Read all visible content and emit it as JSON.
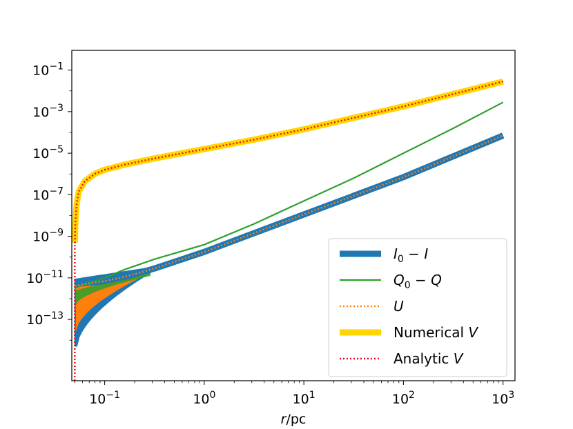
{
  "chart_data": {
    "type": "line",
    "xscale": "log",
    "yscale": "log",
    "xlabel": "r/pc",
    "ylabel": "",
    "xlim_log10": [
      -1.33,
      3.12
    ],
    "ylim_log10": [
      -15.95,
      -0.05
    ],
    "x_ticks": [
      {
        "log10": -1,
        "base": "10",
        "exp": "−1"
      },
      {
        "log10": 0,
        "base": "10",
        "exp": "0"
      },
      {
        "log10": 1,
        "base": "10",
        "exp": "1"
      },
      {
        "log10": 2,
        "base": "10",
        "exp": "2"
      },
      {
        "log10": 3,
        "base": "10",
        "exp": "3"
      }
    ],
    "y_ticks": [
      {
        "log10": -1,
        "base": "10",
        "exp": "−1"
      },
      {
        "log10": -3,
        "base": "10",
        "exp": "−3"
      },
      {
        "log10": -5,
        "base": "10",
        "exp": "−5"
      },
      {
        "log10": -7,
        "base": "10",
        "exp": "−7"
      },
      {
        "log10": -9,
        "base": "10",
        "exp": "−9"
      },
      {
        "log10": -11,
        "base": "10",
        "exp": "−11"
      },
      {
        "log10": -13,
        "base": "10",
        "exp": "−13"
      }
    ],
    "series": [
      {
        "name": "I0 − I",
        "color": "#1f77b4",
        "style": "thick-solid",
        "x_log10": [
          -1.3,
          -1.2,
          -1.0,
          -0.8,
          -0.5,
          0,
          0.5,
          1,
          1.5,
          2,
          2.5,
          3
        ],
        "y_log10": [
          -11.3,
          -11.25,
          -11.15,
          -10.95,
          -10.55,
          -9.75,
          -8.85,
          -7.95,
          -7.05,
          -6.15,
          -5.15,
          -4.15
        ]
      },
      {
        "name": "Q0 − Q",
        "color": "#2ca02c",
        "style": "thin-solid",
        "x_log10": [
          -1.3,
          -1.2,
          -1.0,
          -0.8,
          -0.5,
          0,
          0.5,
          1,
          1.5,
          2,
          2.5,
          3
        ],
        "y_log10": [
          -11.5,
          -11.3,
          -11.0,
          -10.6,
          -10.1,
          -9.4,
          -8.4,
          -7.3,
          -6.2,
          -5.0,
          -3.8,
          -2.55
        ]
      },
      {
        "name": "U",
        "color": "#ff7f0e",
        "style": "dotted",
        "x_log10": [
          -1.3,
          -1.2,
          -1.0,
          -0.8,
          -0.5,
          0,
          0.5,
          1,
          1.5,
          2,
          2.5,
          3
        ],
        "y_log10": [
          -11.4,
          -11.3,
          -11.15,
          -10.95,
          -10.55,
          -9.75,
          -8.85,
          -7.95,
          -7.05,
          -6.15,
          -5.15,
          -4.15
        ]
      },
      {
        "name": "Numerical V",
        "color": "#ffd700",
        "style": "thick-solid",
        "x_log10": [
          -1.299,
          -1.295,
          -1.29,
          -1.28,
          -1.26,
          -1.2,
          -1.1,
          -1.0,
          -0.8,
          -0.5,
          0,
          0.5,
          1,
          1.5,
          2,
          2.5,
          3
        ],
        "y_log10": [
          -9.3,
          -8.5,
          -8.0,
          -7.4,
          -6.85,
          -6.35,
          -6.0,
          -5.8,
          -5.55,
          -5.25,
          -4.8,
          -4.35,
          -3.85,
          -3.3,
          -2.75,
          -2.15,
          -1.55
        ]
      },
      {
        "name": "Analytic V",
        "color": "#ff0000",
        "style": "dotted",
        "x_log10": [
          -1.3,
          -1.3,
          -1.299,
          -1.295,
          -1.29,
          -1.28,
          -1.26,
          -1.2,
          -1.1,
          -1.0,
          -0.8,
          -0.5,
          0,
          0.5,
          1,
          1.5,
          2,
          2.5,
          3
        ],
        "y_log10": [
          -15.95,
          -9.3,
          -9.3,
          -8.5,
          -8.0,
          -7.4,
          -6.85,
          -6.35,
          -6.0,
          -5.8,
          -5.55,
          -5.25,
          -4.8,
          -4.35,
          -3.85,
          -3.3,
          -2.75,
          -2.15,
          -1.55
        ]
      }
    ],
    "legend": {
      "placement": "lower-right",
      "entries": [
        {
          "label_main": "I",
          "sub": "0",
          "label_rest": " − I",
          "color": "#1f77b4",
          "style": "thick"
        },
        {
          "label_main": "Q",
          "sub": "0",
          "label_rest": " − Q",
          "color": "#2ca02c",
          "style": "thin"
        },
        {
          "label_main": "U",
          "sub": "",
          "label_rest": "",
          "color": "#ff7f0e",
          "style": "dotted"
        },
        {
          "label_main": "Numerical ",
          "italic_tail": "V",
          "color": "#ffd700",
          "style": "thick"
        },
        {
          "label_main": "Analytic ",
          "italic_tail": "V",
          "color": "#ff0000",
          "style": "dotted"
        }
      ]
    }
  }
}
